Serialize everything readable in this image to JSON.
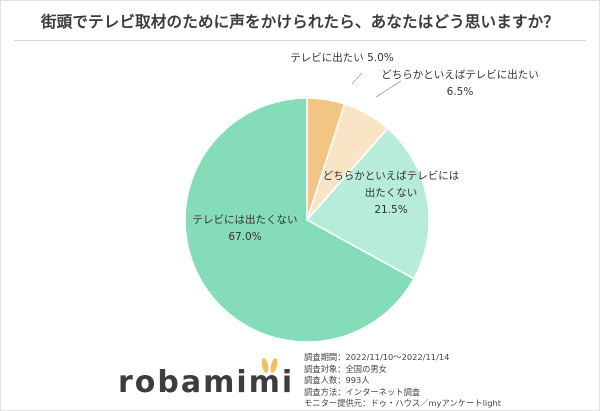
{
  "title": "街頭でテレビ取材のために声をかけられたら、あなたはどう思いますか？",
  "chart_data": {
    "type": "pie",
    "title": "街頭でテレビ取材のために声をかけられたら、あなたはどう思いますか？",
    "start": "12 o'clock, clockwise",
    "slices": [
      {
        "label": "テレビに出たい",
        "value": 5.0,
        "value_label": "5.0%",
        "color": "#f3c585"
      },
      {
        "label": "どちらかといえばテレビに出たい",
        "value": 6.5,
        "value_label": "6.5%",
        "color": "#fae4c6"
      },
      {
        "label": "どちらかといえばテレビには出たくない",
        "value": 21.5,
        "value_label": "21.5%",
        "color": "#b6ecd9"
      },
      {
        "label": "テレビには出たくない",
        "value": 67.0,
        "value_label": "67.0%",
        "color": "#85dcb8"
      }
    ]
  },
  "notes": [
    "調査期間：2022/11/10～2022/11/14",
    "調査対象：全国の男女",
    "調査人数：993人",
    "調査方法：インターネット調査",
    "モニター提供元：ドゥ・ハウス／myアンケートlight"
  ],
  "logo": {
    "text": "robamimi",
    "ear_color": "#f3bd63"
  }
}
